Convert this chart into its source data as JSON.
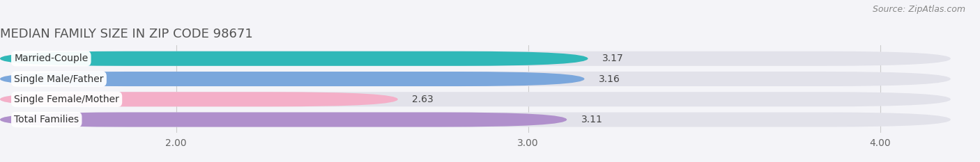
{
  "title": "MEDIAN FAMILY SIZE IN ZIP CODE 98671",
  "source": "Source: ZipAtlas.com",
  "categories": [
    "Married-Couple",
    "Single Male/Father",
    "Single Female/Mother",
    "Total Families"
  ],
  "values": [
    3.17,
    3.16,
    2.63,
    3.11
  ],
  "bar_colors": [
    "#30b8b8",
    "#7ba7dc",
    "#f4afc8",
    "#b090cc"
  ],
  "xmin": 1.5,
  "xmax": 4.2,
  "xticks": [
    2.0,
    3.0,
    4.0
  ],
  "xtick_labels": [
    "2.00",
    "3.00",
    "4.00"
  ],
  "background_color": "#f4f4f8",
  "bar_bg_color": "#e2e2ea",
  "bar_height": 0.72,
  "title_fontsize": 13,
  "source_fontsize": 9,
  "tick_fontsize": 10,
  "value_fontsize": 10,
  "label_fontsize": 10
}
